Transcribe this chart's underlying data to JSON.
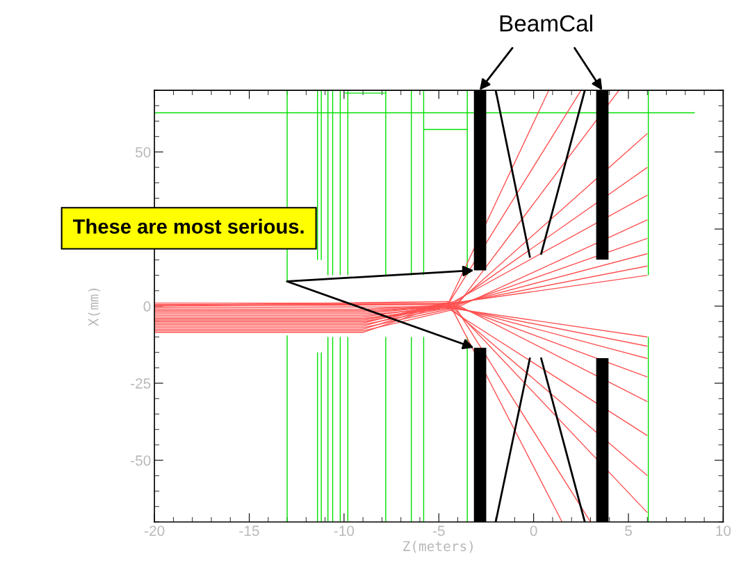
{
  "chart_data": {
    "type": "line",
    "xlabel": "Z(meters)",
    "ylabel": "X(mm)",
    "xlim": [
      -20,
      10
    ],
    "xticks": [
      -20,
      -15,
      -10,
      -5,
      0,
      5,
      10
    ],
    "ylim": [
      -70,
      70
    ],
    "yticks": [
      -50,
      -25,
      0,
      {
        "value": 25,
        "label": null
      },
      50
    ],
    "grid": false,
    "annotations": [
      "BeamCal",
      "These are most serious."
    ],
    "series": [
      {
        "color": "#00e000",
        "x": [
          -13,
          -13
        ],
        "values": [
          70,
          8
        ]
      },
      {
        "color": "#00e000",
        "x": [
          -13,
          -13
        ],
        "values": [
          -9.5,
          -70
        ]
      },
      {
        "color": "#00e000",
        "x": [
          -11.4,
          -11.4
        ],
        "values": [
          70,
          15
        ]
      },
      {
        "color": "#00e000",
        "x": [
          -11.4,
          -11.4
        ],
        "values": [
          -15,
          -70
        ]
      },
      {
        "color": "#00e000",
        "x": [
          -11.2,
          -11.2
        ],
        "values": [
          70,
          15
        ]
      },
      {
        "color": "#00e000",
        "x": [
          -11.2,
          -11.2
        ],
        "values": [
          -15,
          -70
        ]
      },
      {
        "color": "#00e000",
        "x": [
          -10.85,
          -10.85
        ],
        "values": [
          70,
          10
        ]
      },
      {
        "color": "#00e000",
        "x": [
          -10.85,
          -10.85
        ],
        "values": [
          -10,
          -70
        ]
      },
      {
        "color": "#00e000",
        "x": [
          -10.6,
          -10.6
        ],
        "values": [
          70,
          10
        ]
      },
      {
        "color": "#00e000",
        "x": [
          -10.6,
          -10.6
        ],
        "values": [
          -10,
          -70
        ]
      },
      {
        "color": "#00e000",
        "x": [
          -10.2,
          -10.2
        ],
        "values": [
          70,
          10
        ]
      },
      {
        "color": "#00e000",
        "x": [
          -10.2,
          -10.2
        ],
        "values": [
          -10,
          -70
        ]
      },
      {
        "color": "#00e000",
        "x": [
          -9.8,
          -9.8
        ],
        "values": [
          70,
          10
        ]
      },
      {
        "color": "#00e000",
        "x": [
          -9.8,
          -9.8
        ],
        "values": [
          -10,
          -70
        ]
      },
      {
        "color": "#00e000",
        "x": [
          -7.8,
          -7.8
        ],
        "values": [
          70,
          10
        ]
      },
      {
        "color": "#00e000",
        "x": [
          -7.8,
          -7.8
        ],
        "values": [
          -10,
          -70
        ]
      },
      {
        "color": "#00e000",
        "x": [
          -6.45,
          -6.45
        ],
        "values": [
          70,
          10
        ]
      },
      {
        "color": "#00e000",
        "x": [
          -6.45,
          -6.45
        ],
        "values": [
          -10,
          -70
        ]
      },
      {
        "color": "#00e000",
        "x": [
          -5.8,
          -5.8
        ],
        "values": [
          70,
          10
        ]
      },
      {
        "color": "#00e000",
        "x": [
          -5.8,
          -5.8
        ],
        "values": [
          -10,
          -70
        ]
      },
      {
        "color": "#00e000",
        "x": [
          -3.5,
          -3.5
        ],
        "values": [
          70,
          10
        ]
      },
      {
        "color": "#00e000",
        "x": [
          -3.5,
          -3.5
        ],
        "values": [
          -10,
          -70
        ]
      },
      {
        "color": "#00e000",
        "x": [
          6.05,
          6.05
        ],
        "values": [
          70,
          10
        ]
      },
      {
        "color": "#00e000",
        "x": [
          6.05,
          6.05
        ],
        "values": [
          -10,
          -70
        ]
      },
      {
        "color": "#00e000",
        "x": [
          -20,
          8.5
        ],
        "values": [
          62.7,
          62.7
        ]
      },
      {
        "color": "#00e000",
        "x": [
          -10.0,
          -7.8
        ],
        "values": [
          69.1,
          69.1
        ]
      },
      {
        "color": "#00e000",
        "x": [
          -5.8,
          -3.5
        ],
        "values": [
          57.3,
          57.3
        ]
      },
      {
        "color": "#ff5050",
        "x": [
          -20,
          -4.8,
          6
        ],
        "values": [
          0,
          0.5,
          10
        ]
      },
      {
        "color": "#ff5050",
        "x": [
          -20,
          -9,
          -4.6,
          6
        ],
        "values": [
          -1,
          -1,
          0.3,
          13
        ]
      },
      {
        "color": "#ff5050",
        "x": [
          -20,
          -9,
          -4.4,
          6
        ],
        "values": [
          -2,
          -2,
          0.1,
          17
        ]
      },
      {
        "color": "#ff5050",
        "x": [
          -20,
          -9,
          -4.2,
          6
        ],
        "values": [
          -3,
          -3,
          -0.1,
          22
        ]
      },
      {
        "color": "#ff5050",
        "x": [
          -20,
          -9,
          -4.0,
          6
        ],
        "values": [
          -4,
          -4,
          -0.3,
          28
        ]
      },
      {
        "color": "#ff5050",
        "x": [
          -20,
          -9,
          -4.8,
          6
        ],
        "values": [
          -5,
          -5,
          -0.5,
          36
        ]
      },
      {
        "color": "#ff5050",
        "x": [
          -20,
          -9,
          -4.6,
          6
        ],
        "values": [
          -6,
          -6,
          -0.7,
          45
        ]
      },
      {
        "color": "#ff5050",
        "x": [
          -20,
          -9,
          -4.4,
          6
        ],
        "values": [
          -7,
          -7,
          -0.9,
          56
        ]
      },
      {
        "color": "#ff5050",
        "x": [
          -20,
          -9,
          -4.2,
          4.5
        ],
        "values": [
          -8,
          -8,
          -1.1,
          70
        ]
      },
      {
        "color": "#ff5050",
        "x": [
          -20,
          -4.5,
          2.5
        ],
        "values": [
          0.5,
          0.7,
          70
        ]
      },
      {
        "color": "#ff5050",
        "x": [
          -20,
          -4.5,
          0.8
        ],
        "values": [
          1,
          0.9,
          70
        ]
      },
      {
        "color": "#ff5050",
        "x": [
          -20,
          -4.9,
          6
        ],
        "values": [
          -0.5,
          -0.2,
          -10
        ]
      },
      {
        "color": "#ff5050",
        "x": [
          -20,
          -9,
          -4.7,
          6
        ],
        "values": [
          -1.5,
          -1.5,
          0,
          -13
        ]
      },
      {
        "color": "#ff5050",
        "x": [
          -20,
          -9,
          -4.5,
          6
        ],
        "values": [
          -2.5,
          -2.5,
          0.2,
          -17
        ]
      },
      {
        "color": "#ff5050",
        "x": [
          -20,
          -9,
          -4.3,
          6
        ],
        "values": [
          -3.5,
          -3.5,
          0.4,
          -23
        ]
      },
      {
        "color": "#ff5050",
        "x": [
          -20,
          -9,
          -4.1,
          6
        ],
        "values": [
          -4.5,
          -4.5,
          0.6,
          -31
        ]
      },
      {
        "color": "#ff5050",
        "x": [
          -20,
          -9,
          -4.9,
          6
        ],
        "values": [
          -5.5,
          -5.5,
          0.8,
          -42
        ]
      },
      {
        "color": "#ff5050",
        "x": [
          -20,
          -9,
          -4.7,
          6
        ],
        "values": [
          -6.5,
          -6.5,
          1,
          -55
        ]
      },
      {
        "color": "#ff5050",
        "x": [
          -20,
          -9,
          -4.5,
          6
        ],
        "values": [
          -7.5,
          -7.5,
          1.2,
          -67
        ]
      },
      {
        "color": "#ff5050",
        "x": [
          -20,
          -9,
          -4.3,
          3.0
        ],
        "values": [
          -8.5,
          -8.5,
          1.4,
          -70
        ]
      },
      {
        "color": "#ff5050",
        "x": [
          -20,
          -4.5,
          1.5
        ],
        "values": [
          0.2,
          1.5,
          -70
        ]
      }
    ]
  }
}
